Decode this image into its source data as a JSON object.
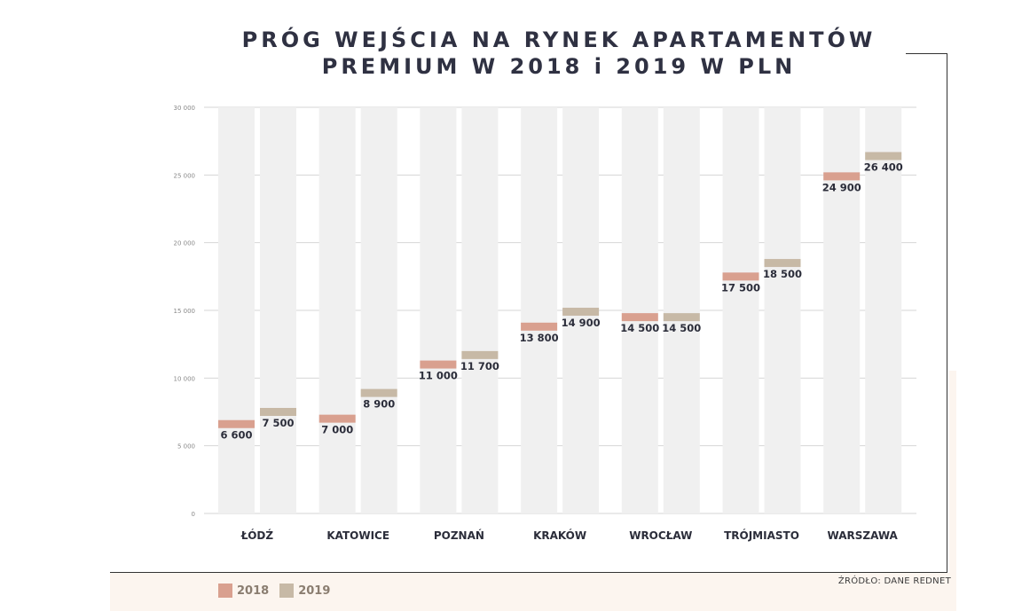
{
  "title": {
    "line1": "PRÓG WEJŚCIA NA RYNEK APARTAMENTÓW",
    "line2": "PREMIUM W 2018 i 2019 W PLN"
  },
  "chart_data": {
    "type": "bar",
    "title": "PRÓG WEJŚCIA NA RYNEK APARTAMENTÓW PREMIUM W 2018 i 2019 W PLN",
    "categories": [
      "ŁÓDŹ",
      "KATOWICE",
      "POZNAŃ",
      "KRAKÓW",
      "WROCŁAW",
      "TRÓJMIASTO",
      "WARSZAWA"
    ],
    "series": [
      {
        "name": "2018",
        "color": "#d9a08f",
        "values": [
          6600,
          7000,
          11000,
          13800,
          14500,
          17500,
          24900
        ],
        "labels": [
          "6 600",
          "7 000",
          "11 000",
          "13 800",
          "14 500",
          "17 500",
          "24 900"
        ]
      },
      {
        "name": "2019",
        "color": "#c7b9a6",
        "values": [
          7500,
          8900,
          11700,
          14900,
          14500,
          18500,
          26400
        ],
        "labels": [
          "7 500",
          "8 900",
          "11 700",
          "14 900",
          "14 500",
          "18 500",
          "26 400"
        ]
      }
    ],
    "ylim": [
      0,
      30000
    ],
    "yticks": [
      0,
      5000,
      10000,
      15000,
      20000,
      25000,
      30000
    ],
    "ytick_labels": [
      "0",
      "5 000",
      "10 000",
      "15 000",
      "20 000",
      "25 000",
      "30 000"
    ],
    "grid": true,
    "legend": "bottom-left",
    "xlabel": "",
    "ylabel": ""
  },
  "legend": {
    "items": [
      {
        "label": "2018",
        "color": "#d9a08f"
      },
      {
        "label": "2019",
        "color": "#c7b9a6"
      }
    ]
  },
  "source": "ŹRÓDŁO: DANE REDNET"
}
